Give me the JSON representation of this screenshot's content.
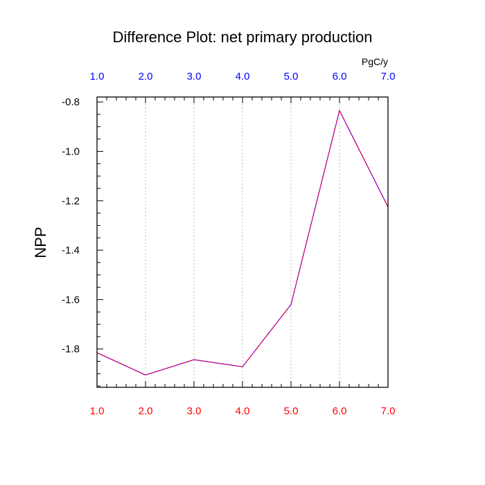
{
  "chart_data": {
    "type": "line",
    "title": "Difference Plot: net primary production",
    "units": "PgC/y",
    "ylabel": "NPP",
    "xlabel": "",
    "x": [
      1,
      2,
      3,
      4,
      5,
      6,
      7
    ],
    "x_tick_labels": [
      "1.0",
      "2.0",
      "3.0",
      "4.0",
      "5.0",
      "6.0",
      "7.0"
    ],
    "y_ticks": [
      -1.8,
      -1.6,
      -1.4,
      -1.2,
      -1.0,
      -0.8
    ],
    "y_tick_labels": [
      "-1.8",
      "-1.6",
      "-1.4",
      "-1.2",
      "-1.0",
      "-0.8"
    ],
    "xlim": [
      1,
      7
    ],
    "ylim": [
      -1.955,
      -0.78
    ],
    "grid": "vertical dotted at major x ticks",
    "series": [
      {
        "values": [
          -1.815,
          -1.905,
          -1.843,
          -1.872,
          -1.62,
          -0.835,
          -1.225
        ],
        "style": "dashed",
        "color": "#7a00ff",
        "dash_color": "#ff0000"
      }
    ],
    "colors": {
      "bottom_tick_labels": "#ff0000",
      "top_tick_labels": "#0000ff",
      "grid": "#bbbbbb",
      "frame": "#000000"
    }
  }
}
